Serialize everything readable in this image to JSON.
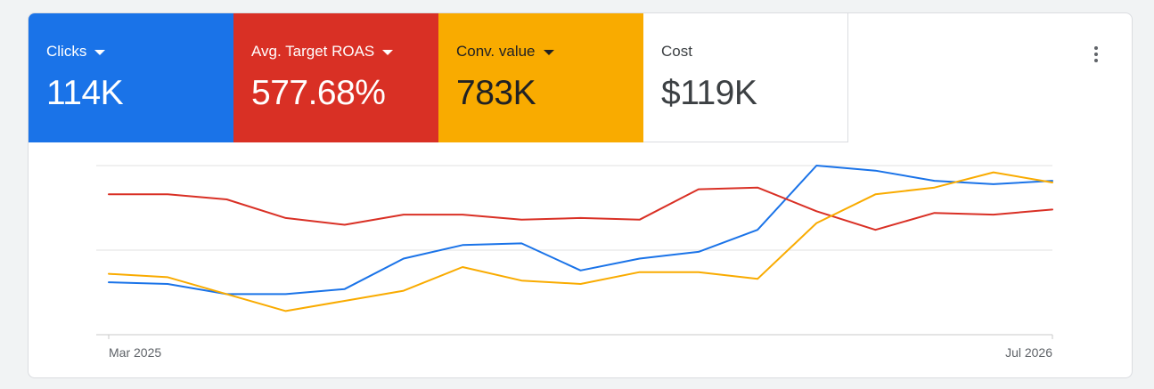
{
  "metrics": [
    {
      "label": "Clicks",
      "value": "114K",
      "bg": "#1a73e8",
      "fg": "#ffffff",
      "dropdown": true
    },
    {
      "label": "Avg. Target ROAS",
      "value": "577.68%",
      "bg": "#d93025",
      "fg": "#ffffff",
      "dropdown": true
    },
    {
      "label": "Conv. value",
      "value": "783K",
      "bg": "#f9ab00",
      "fg": "#202124",
      "dropdown": true
    },
    {
      "label": "Cost",
      "value": "$119K",
      "bg": "#ffffff",
      "fg": "#3c4043",
      "dropdown": false
    }
  ],
  "menu": {
    "icon": "more-vert-icon"
  },
  "chart_data": {
    "type": "line",
    "x_tick_labels": [
      "Mar 2025",
      "Jul 2026"
    ],
    "ylim": [
      0,
      100
    ],
    "grid": true,
    "series": [
      {
        "color": "#1a73e8",
        "values": [
          31,
          30,
          24,
          24,
          27,
          45,
          53,
          54,
          38,
          45,
          49,
          62,
          100,
          97,
          91,
          89,
          91
        ]
      },
      {
        "color": "#d93025",
        "values": [
          83,
          83,
          80,
          69,
          65,
          71,
          71,
          68,
          69,
          68,
          86,
          87,
          73,
          62,
          72,
          71,
          74
        ]
      },
      {
        "color": "#f9ab00",
        "values": [
          36,
          34,
          24,
          14,
          20,
          26,
          40,
          32,
          30,
          37,
          37,
          33,
          66,
          83,
          87,
          96,
          90
        ]
      }
    ]
  }
}
